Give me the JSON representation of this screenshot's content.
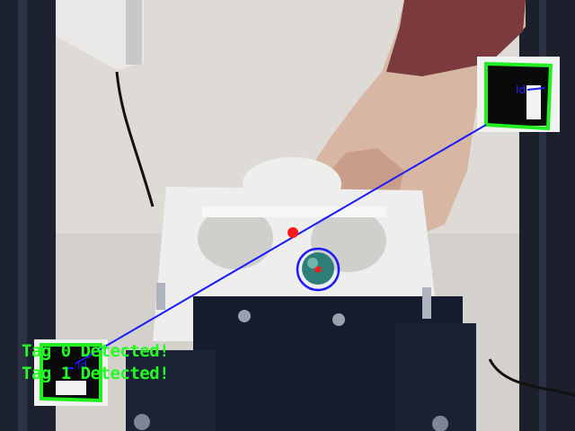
{
  "overlay": {
    "line1": "Tag 0 Detected!",
    "line2": "Tag 1 Detected!",
    "tag_label_right": "Id",
    "tag_label_left": "Id"
  },
  "colors": {
    "tag_box": "#22ee22",
    "link_line": "#1a1aff",
    "target_circle": "#1a1aff",
    "midpoint": "#ff1a1a",
    "ball_center": "#ff1a1a",
    "status_text": "#22ff22"
  },
  "icons": {
    "tag0": "apriltag-marker",
    "tag1": "apriltag-marker",
    "ball": "tracked-ball"
  }
}
